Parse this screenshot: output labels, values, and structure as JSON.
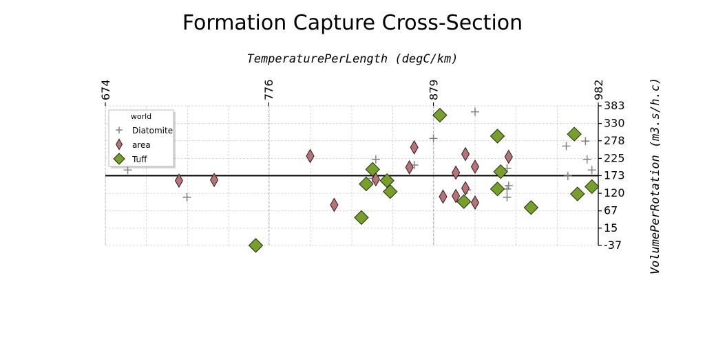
{
  "chart_data": {
    "type": "scatter",
    "title": "Formation Capture Cross-Section",
    "xlabel": "TemperaturePerLength (degC/km)",
    "ylabel": "VolumePerRotation (m3.s/h.c)",
    "xlim": [
      674,
      982
    ],
    "ylim": [
      -37,
      383
    ],
    "x_axis_position": "top",
    "y_axis_position": "right",
    "x_ticks": [
      "674",
      "776",
      "879",
      "982"
    ],
    "y_ticks": [
      "383",
      "330",
      "278",
      "225",
      "173",
      "120",
      "67",
      "15",
      "-37"
    ],
    "grid": true,
    "reference_line_y": 173,
    "legend": {
      "title": "world",
      "placement": "top-left"
    },
    "series": [
      {
        "name": "Diatomite",
        "marker": "plus",
        "color": "#808080",
        "points": [
          [
            688,
            190
          ],
          [
            725,
            108
          ],
          [
            843,
            222
          ],
          [
            841,
            165
          ],
          [
            867,
            205
          ],
          [
            879,
            285
          ],
          [
            905,
            365
          ],
          [
            900,
            130
          ],
          [
            925,
            195
          ],
          [
            926,
            143
          ],
          [
            925,
            108
          ],
          [
            925,
            133
          ],
          [
            962,
            262
          ],
          [
            974,
            277
          ],
          [
            975,
            222
          ],
          [
            978,
            190
          ],
          [
            963,
            172
          ]
        ]
      },
      {
        "name": "area",
        "marker": "thin_diamond",
        "color": "#b87379",
        "points": [
          [
            720,
            158
          ],
          [
            742,
            160
          ],
          [
            802,
            232
          ],
          [
            817,
            85
          ],
          [
            843,
            162
          ],
          [
            864,
            198
          ],
          [
            867,
            258
          ],
          [
            885,
            110
          ],
          [
            893,
            112
          ],
          [
            893,
            182
          ],
          [
            899,
            238
          ],
          [
            899,
            135
          ],
          [
            905,
            200
          ],
          [
            905,
            92
          ],
          [
            926,
            230
          ]
        ]
      },
      {
        "name": "Tuff",
        "marker": "diamond",
        "color": "#77a02a",
        "points": [
          [
            768,
            -37
          ],
          [
            834,
            47
          ],
          [
            837,
            148
          ],
          [
            841,
            192
          ],
          [
            850,
            158
          ],
          [
            852,
            125
          ],
          [
            883,
            355
          ],
          [
            898,
            95
          ],
          [
            919,
            292
          ],
          [
            919,
            133
          ],
          [
            921,
            185
          ],
          [
            940,
            77
          ],
          [
            969,
            118
          ],
          [
            967,
            298
          ],
          [
            978,
            140
          ]
        ]
      }
    ]
  }
}
